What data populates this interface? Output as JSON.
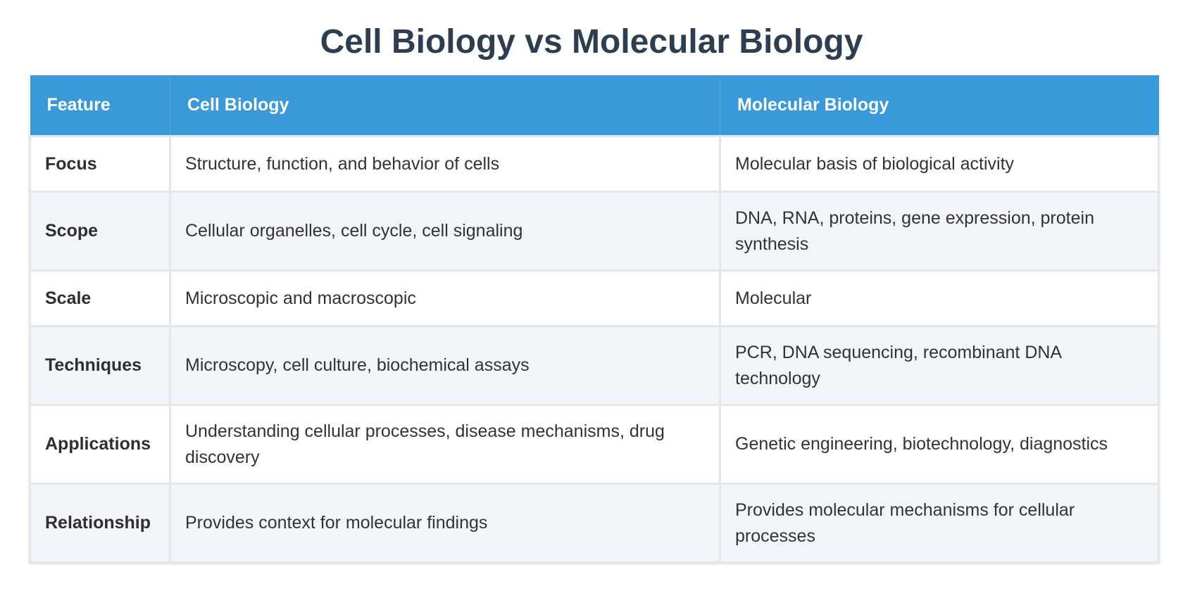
{
  "title": "Cell Biology vs Molecular Biology",
  "table": {
    "headers": [
      "Feature",
      "Cell Biology",
      "Molecular Biology"
    ],
    "rows": [
      {
        "feature": "Focus",
        "cell": "Structure, function, and behavior of cells",
        "molecular": "Molecular basis of biological activity"
      },
      {
        "feature": "Scope",
        "cell": "Cellular organelles, cell cycle, cell signaling",
        "molecular": "DNA, RNA, proteins, gene expression, protein synthesis"
      },
      {
        "feature": "Scale",
        "cell": "Microscopic and macroscopic",
        "molecular": "Molecular"
      },
      {
        "feature": "Techniques",
        "cell": "Microscopy, cell culture, biochemical assays",
        "molecular": "PCR, DNA sequencing, recombinant DNA technology"
      },
      {
        "feature": "Applications",
        "cell": "Understanding cellular processes, disease mechanisms, drug discovery",
        "molecular": "Genetic engineering, biotechnology, diagnostics"
      },
      {
        "feature": "Relationship",
        "cell": "Provides context for molecular findings",
        "molecular": "Provides molecular mechanisms for cellular processes"
      }
    ]
  },
  "colors": {
    "title": "#2c3e50",
    "header_bg": "#3a99d8",
    "header_text": "#ffffff",
    "row_alt_bg": "#f1f4f9",
    "border": "#e6e6e6"
  }
}
